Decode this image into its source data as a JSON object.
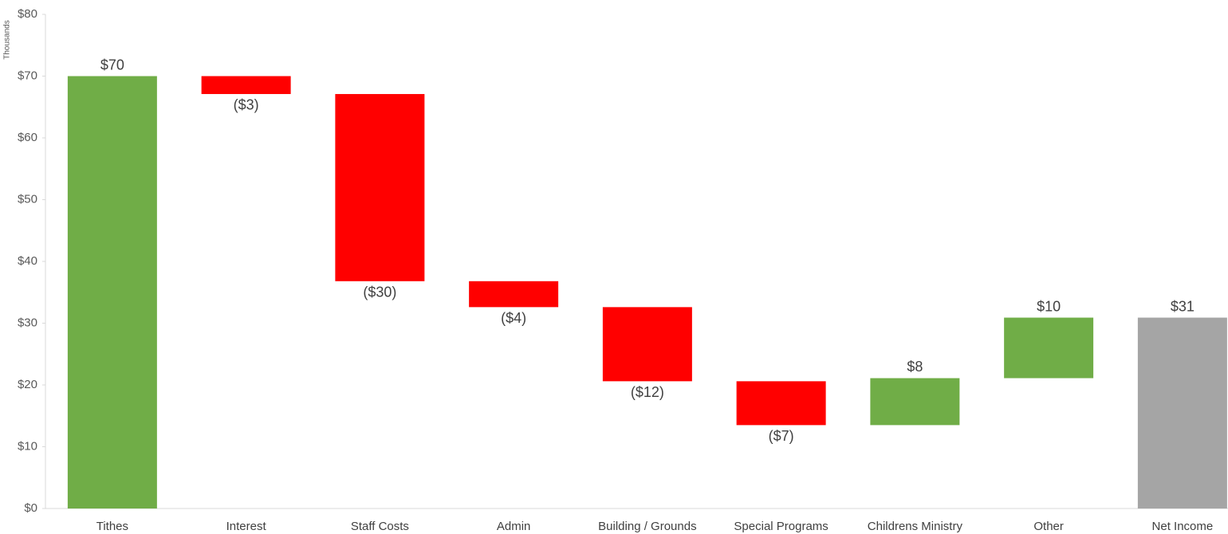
{
  "chart_data": {
    "type": "waterfall",
    "y_axis_label": "Thousands",
    "categories": [
      "Tithes",
      "Interest",
      "Staff Costs",
      "Admin",
      "Building / Grounds",
      "Special Programs",
      "Childrens Ministry",
      "Other",
      "Net Income"
    ],
    "values": [
      70,
      -2.9,
      -30.3,
      -4.2,
      -12,
      -7.1,
      7.6,
      9.8,
      30.9
    ],
    "value_labels": [
      "$70",
      "($3)",
      "($30)",
      "($4)",
      "($12)",
      "($7)",
      "$8",
      "$10",
      "$31"
    ],
    "is_total": [
      false,
      false,
      false,
      false,
      false,
      false,
      false,
      false,
      true
    ],
    "colors": {
      "increase": "#70ad47",
      "decrease": "#ff0000",
      "total": "#a5a5a5"
    },
    "ylim": [
      0,
      80
    ],
    "yticks": [
      {
        "value": 0,
        "label": "$0"
      },
      {
        "value": 10,
        "label": "$10"
      },
      {
        "value": 20,
        "label": "$20"
      },
      {
        "value": 30,
        "label": "$30"
      },
      {
        "value": 40,
        "label": "$40"
      },
      {
        "value": 50,
        "label": "$50"
      },
      {
        "value": 60,
        "label": "$60"
      },
      {
        "value": 70,
        "label": "$70"
      },
      {
        "value": 80,
        "label": "$80"
      }
    ],
    "grid": false
  }
}
